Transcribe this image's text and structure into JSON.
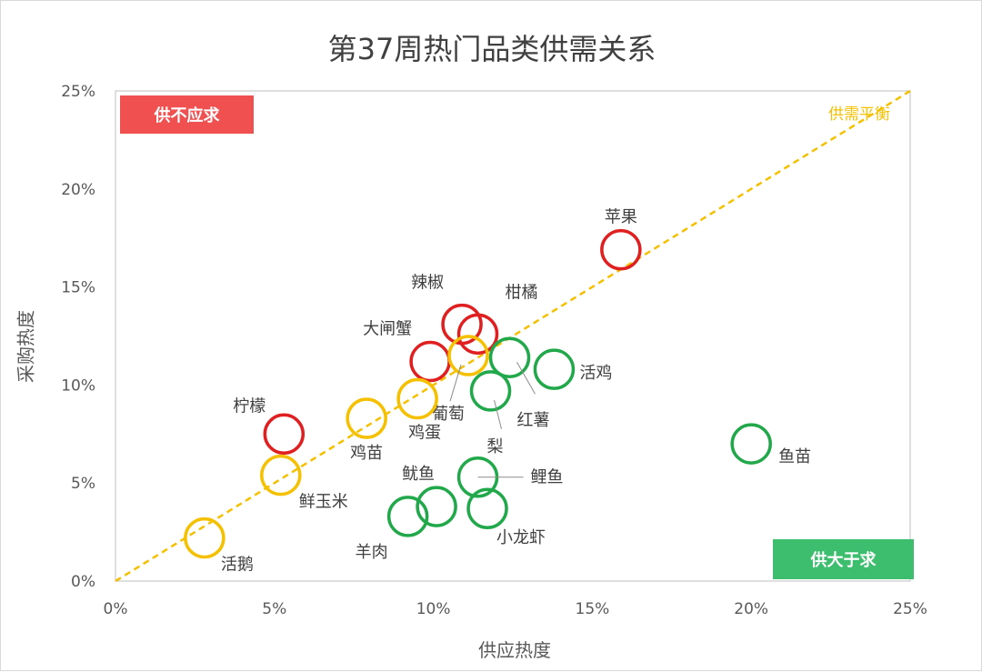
{
  "chart_data": {
    "type": "scatter",
    "title": "第37周热门品类供需关系",
    "xlabel": "供应热度",
    "ylabel": "采购热度",
    "xlim": [
      0,
      25
    ],
    "ylim": [
      0,
      25
    ],
    "x_ticks": [
      "0%",
      "5%",
      "10%",
      "15%",
      "20%",
      "25%"
    ],
    "y_ticks": [
      "0%",
      "5%",
      "10%",
      "15%",
      "20%",
      "25%"
    ],
    "grid": false,
    "reference_line": {
      "label": "供需平衡",
      "from": [
        0,
        0
      ],
      "to": [
        25,
        25
      ],
      "color": "#f5c000",
      "style": "dashed"
    },
    "regions": {
      "upper_left": "供不应求",
      "lower_right": "供大于求"
    },
    "colors": {
      "undersupply": "#e02020",
      "balanced": "#f5c000",
      "oversupply": "#21a84a"
    },
    "points": [
      {
        "name": "苹果",
        "x": 15.9,
        "y": 16.9,
        "group": "undersupply"
      },
      {
        "name": "辣椒",
        "x": 10.9,
        "y": 13.1,
        "group": "undersupply"
      },
      {
        "name": "柑橘",
        "x": 11.4,
        "y": 12.6,
        "group": "undersupply"
      },
      {
        "name": "大闸蟹",
        "x": 9.9,
        "y": 11.2,
        "group": "undersupply"
      },
      {
        "name": "柠檬",
        "x": 5.3,
        "y": 7.5,
        "group": "undersupply"
      },
      {
        "name": "葡萄",
        "x": 11.1,
        "y": 11.5,
        "group": "balanced"
      },
      {
        "name": "鸡蛋",
        "x": 9.5,
        "y": 9.3,
        "group": "balanced"
      },
      {
        "name": "鸡苗",
        "x": 7.9,
        "y": 8.3,
        "group": "balanced"
      },
      {
        "name": "鲜玉米",
        "x": 5.2,
        "y": 5.4,
        "group": "balanced"
      },
      {
        "name": "活鹅",
        "x": 2.8,
        "y": 2.2,
        "group": "balanced"
      },
      {
        "name": "活鸡",
        "x": 13.8,
        "y": 10.8,
        "group": "oversupply"
      },
      {
        "name": "红薯",
        "x": 12.4,
        "y": 11.4,
        "group": "oversupply"
      },
      {
        "name": "梨",
        "x": 11.8,
        "y": 9.7,
        "group": "oversupply"
      },
      {
        "name": "鱼苗",
        "x": 20.0,
        "y": 7.0,
        "group": "oversupply"
      },
      {
        "name": "鲤鱼",
        "x": 11.4,
        "y": 5.3,
        "group": "oversupply"
      },
      {
        "name": "鱿鱼",
        "x": 10.1,
        "y": 3.8,
        "group": "oversupply"
      },
      {
        "name": "羊肉",
        "x": 9.2,
        "y": 3.3,
        "group": "oversupply"
      },
      {
        "name": "小龙虾",
        "x": 11.7,
        "y": 3.7,
        "group": "oversupply"
      }
    ]
  }
}
